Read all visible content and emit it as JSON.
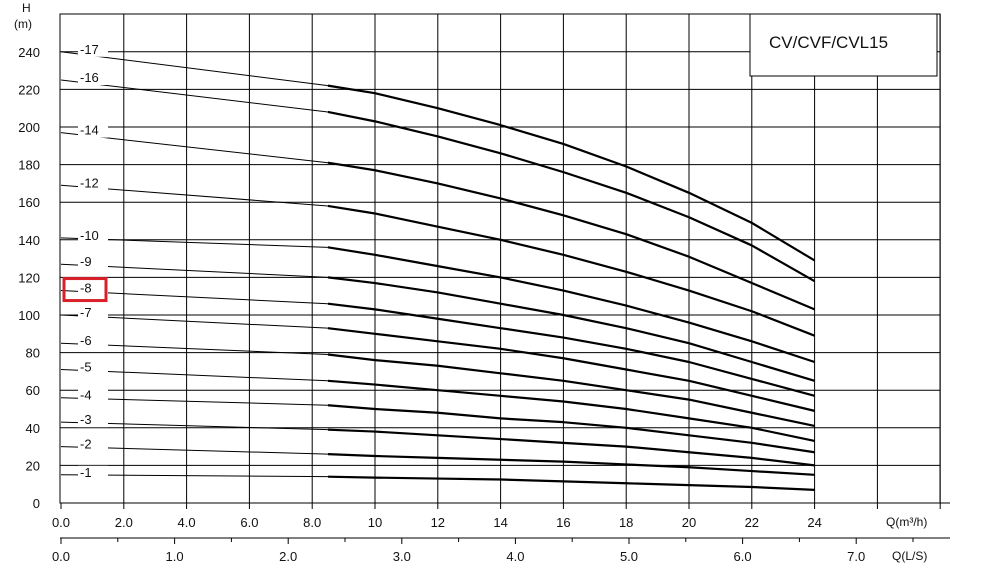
{
  "chart_data": {
    "type": "line",
    "title": "CV/CVF/CVL15",
    "ylabel": "H",
    "ylabel_unit": "(m)",
    "xlabel": "Q(m³/h)",
    "xlabel_secondary": "Q(L/S)",
    "xlim": [
      0,
      28
    ],
    "ylim": [
      0,
      250
    ],
    "x_ticks": [
      {
        "value": 0,
        "label": "0.0"
      },
      {
        "value": 2,
        "label": "2.0"
      },
      {
        "value": 4,
        "label": "4.0"
      },
      {
        "value": 6,
        "label": "6.0"
      },
      {
        "value": 8,
        "label": "8.0"
      },
      {
        "value": 10,
        "label": "10"
      },
      {
        "value": 12,
        "label": "12"
      },
      {
        "value": 14,
        "label": "14"
      },
      {
        "value": 16,
        "label": "16"
      },
      {
        "value": 18,
        "label": "18"
      },
      {
        "value": 20,
        "label": "20"
      },
      {
        "value": 22,
        "label": "22"
      },
      {
        "value": 24,
        "label": "24"
      }
    ],
    "x_ticks_secondary": [
      {
        "value": 0,
        "label": "0.0"
      },
      {
        "value": 1,
        "label": "1.0"
      },
      {
        "value": 2,
        "label": "2.0"
      },
      {
        "value": 3,
        "label": "3.0"
      },
      {
        "value": 4,
        "label": "4.0"
      },
      {
        "value": 5,
        "label": "5.0"
      },
      {
        "value": 6,
        "label": "6.0"
      },
      {
        "value": 7,
        "label": "7.0"
      }
    ],
    "y_ticks": [
      {
        "value": 0,
        "label": "0"
      },
      {
        "value": 20,
        "label": "20"
      },
      {
        "value": 40,
        "label": "40"
      },
      {
        "value": 60,
        "label": "60"
      },
      {
        "value": 80,
        "label": "80"
      },
      {
        "value": 100,
        "label": "100"
      },
      {
        "value": 120,
        "label": "120"
      },
      {
        "value": 140,
        "label": "140"
      },
      {
        "value": 160,
        "label": "160"
      },
      {
        "value": 180,
        "label": "180"
      },
      {
        "value": 200,
        "label": "200"
      },
      {
        "value": 220,
        "label": "220"
      },
      {
        "value": 240,
        "label": "240"
      }
    ],
    "grid": true,
    "highlight_label": "-8",
    "series": [
      {
        "name": "-1",
        "shutoff_head": 15,
        "x": [
          0,
          8.5,
          10,
          12,
          14,
          16,
          18,
          20,
          22,
          24
        ],
        "y": [
          15,
          14,
          13.5,
          13,
          12.5,
          11.5,
          10.5,
          9.5,
          8.5,
          7
        ]
      },
      {
        "name": "-2",
        "shutoff_head": 30,
        "x": [
          0,
          8.5,
          10,
          12,
          14,
          16,
          18,
          20,
          22,
          24
        ],
        "y": [
          30,
          26,
          25,
          24,
          23,
          22,
          20.5,
          19,
          17,
          15
        ]
      },
      {
        "name": "-3",
        "shutoff_head": 43,
        "x": [
          0,
          8.5,
          10,
          12,
          14,
          16,
          18,
          20,
          22,
          24
        ],
        "y": [
          43,
          39,
          38,
          36,
          34,
          32,
          30,
          27,
          24,
          20
        ]
      },
      {
        "name": "-4",
        "shutoff_head": 56,
        "x": [
          0,
          8.5,
          10,
          12,
          14,
          16,
          18,
          20,
          22,
          24
        ],
        "y": [
          56,
          52,
          50,
          48,
          45,
          43,
          40,
          36,
          32,
          27
        ]
      },
      {
        "name": "-5",
        "shutoff_head": 71,
        "x": [
          0,
          8.5,
          10,
          12,
          14,
          16,
          18,
          20,
          22,
          24
        ],
        "y": [
          71,
          65,
          63,
          60,
          57,
          54,
          50,
          45,
          40,
          33
        ]
      },
      {
        "name": "-6",
        "shutoff_head": 85,
        "x": [
          0,
          8.5,
          10,
          12,
          14,
          16,
          18,
          20,
          22,
          24
        ],
        "y": [
          85,
          79,
          76,
          73,
          69,
          65,
          60,
          55,
          48,
          41
        ]
      },
      {
        "name": "-7",
        "shutoff_head": 100,
        "x": [
          0,
          8.5,
          10,
          12,
          14,
          16,
          18,
          20,
          22,
          24
        ],
        "y": [
          100,
          93,
          90,
          86,
          82,
          77,
          71,
          65,
          57,
          49
        ]
      },
      {
        "name": "-8",
        "shutoff_head": 113,
        "x": [
          0,
          8.5,
          10,
          12,
          14,
          16,
          18,
          20,
          22,
          24
        ],
        "y": [
          113,
          106,
          103,
          98,
          93,
          88,
          82,
          75,
          66,
          57
        ]
      },
      {
        "name": "-9",
        "shutoff_head": 127,
        "x": [
          0,
          8.5,
          10,
          12,
          14,
          16,
          18,
          20,
          22,
          24
        ],
        "y": [
          127,
          120,
          117,
          112,
          106,
          100,
          93,
          85,
          75,
          65
        ]
      },
      {
        "name": "-10",
        "shutoff_head": 141,
        "x": [
          0,
          8.5,
          10,
          12,
          14,
          16,
          18,
          20,
          22,
          24
        ],
        "y": [
          141,
          136,
          132,
          126,
          120,
          113,
          105,
          96,
          86,
          75
        ]
      },
      {
        "name": "-12",
        "shutoff_head": 169,
        "x": [
          0,
          8.5,
          10,
          12,
          14,
          16,
          18,
          20,
          22,
          24
        ],
        "y": [
          169,
          158,
          154,
          147,
          140,
          132,
          123,
          113,
          102,
          89
        ]
      },
      {
        "name": "-14",
        "shutoff_head": 197,
        "x": [
          0,
          8.5,
          10,
          12,
          14,
          16,
          18,
          20,
          22,
          24
        ],
        "y": [
          197,
          181,
          177,
          170,
          162,
          153,
          143,
          131,
          117,
          103
        ]
      },
      {
        "name": "-16",
        "shutoff_head": 225,
        "x": [
          0,
          8.5,
          10,
          12,
          14,
          16,
          18,
          20,
          22,
          24
        ],
        "y": [
          225,
          208,
          203,
          195,
          186,
          176,
          165,
          152,
          137,
          118
        ]
      },
      {
        "name": "-17",
        "shutoff_head": 240,
        "x": [
          0,
          8.5,
          10,
          12,
          14,
          16,
          18,
          20,
          22,
          24
        ],
        "y": [
          240,
          222,
          218,
          210,
          201,
          191,
          179,
          165,
          149,
          129
        ]
      }
    ]
  }
}
